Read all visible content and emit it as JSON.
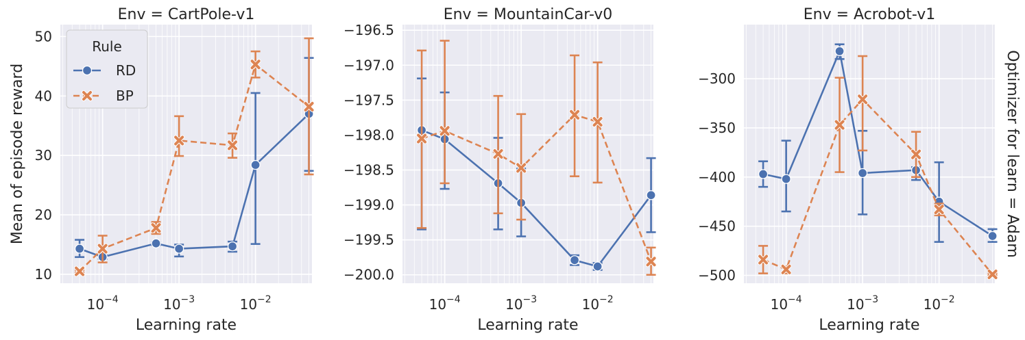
{
  "colors": {
    "RD": "#4c72b0",
    "BP": "#dd8452"
  },
  "legend": {
    "title": "Rule",
    "entries": [
      {
        "name": "RD",
        "marker": "circle",
        "linestyle": "solid"
      },
      {
        "name": "BP",
        "marker": "x",
        "linestyle": "dashed"
      }
    ]
  },
  "row_label": "Optimizer for learn = Adam",
  "chart_data": [
    {
      "type": "line",
      "title": "Env = CartPole-v1",
      "xlabel": "Learning rate",
      "ylabel": "Mean of episode reward",
      "xscale": "log",
      "xticks": [
        {
          "base": "10",
          "exp": "−4"
        },
        {
          "base": "10",
          "exp": "−3"
        },
        {
          "base": "10",
          "exp": "−2"
        }
      ],
      "yticks": [
        "10",
        "20",
        "30",
        "40",
        "50"
      ],
      "ylim": [
        8.5,
        52
      ],
      "series": [
        {
          "name": "RD",
          "x": [
            5e-05,
            0.0001,
            0.0005,
            0.001,
            0.005,
            0.01,
            0.05
          ],
          "y": [
            14.3,
            12.9,
            15.2,
            14.3,
            14.7,
            28.4,
            37.0
          ],
          "err_low": [
            12.9,
            12.6,
            14.9,
            13.0,
            13.8,
            15.1,
            27.4
          ],
          "err_high": [
            15.8,
            13.2,
            15.4,
            15.0,
            15.5,
            40.5,
            46.4
          ]
        },
        {
          "name": "BP",
          "x": [
            5e-05,
            0.0001,
            0.0005,
            0.001,
            0.005,
            0.01,
            0.05
          ],
          "y": [
            10.5,
            14.3,
            17.8,
            32.5,
            31.7,
            45.3,
            38.2
          ],
          "err_low": [
            10.3,
            12.0,
            16.8,
            29.9,
            29.6,
            43.1,
            26.8
          ],
          "err_high": [
            10.7,
            16.5,
            18.8,
            36.6,
            33.7,
            47.5,
            49.7
          ]
        }
      ],
      "grid": true,
      "legend_position": "upper-left"
    },
    {
      "type": "line",
      "title": "Env = MountainCar-v0",
      "xlabel": "Learning rate",
      "ylabel": "",
      "xscale": "log",
      "xticks": [
        {
          "base": "10",
          "exp": "−4"
        },
        {
          "base": "10",
          "exp": "−3"
        },
        {
          "base": "10",
          "exp": "−2"
        }
      ],
      "yticks": [
        "−196.5",
        "−197.0",
        "−197.5",
        "−198.0",
        "−198.5",
        "−199.0",
        "−199.5",
        "−200.0"
      ],
      "ylim": [
        -200.12,
        -196.42
      ],
      "series": [
        {
          "name": "RD",
          "x": [
            5e-05,
            0.0001,
            0.0005,
            0.001,
            0.005,
            0.01,
            0.05
          ],
          "y": [
            -197.93,
            -198.06,
            -198.69,
            -198.97,
            -199.79,
            -199.88,
            -198.86
          ],
          "err_low": [
            -199.35,
            -198.77,
            -199.35,
            -199.45,
            -199.86,
            -199.93,
            -199.39
          ],
          "err_high": [
            -197.19,
            -197.39,
            -198.04,
            -198.48,
            -199.72,
            -199.83,
            -198.33
          ]
        },
        {
          "name": "BP",
          "x": [
            5e-05,
            0.0001,
            0.0005,
            0.001,
            0.005,
            0.01,
            0.05
          ],
          "y": [
            -198.05,
            -197.94,
            -198.27,
            -198.47,
            -197.71,
            -197.81,
            -199.81
          ],
          "err_low": [
            -199.33,
            -198.69,
            -199.12,
            -199.21,
            -198.59,
            -198.68,
            -200.0
          ],
          "err_high": [
            -196.79,
            -196.65,
            -197.44,
            -197.7,
            -196.86,
            -196.96,
            -199.61
          ]
        }
      ],
      "grid": true
    },
    {
      "type": "line",
      "title": "Env = Acrobot-v1",
      "xlabel": "Learning rate",
      "ylabel": "",
      "xscale": "log",
      "xticks": [
        {
          "base": "10",
          "exp": "−4"
        },
        {
          "base": "10",
          "exp": "−3"
        },
        {
          "base": "10",
          "exp": "−2"
        }
      ],
      "yticks": [
        "−300",
        "−350",
        "−400",
        "−450",
        "−500"
      ],
      "ylim": [
        -508,
        -245
      ],
      "series": [
        {
          "name": "RD",
          "x": [
            5e-05,
            0.0001,
            0.0005,
            0.001,
            0.005,
            0.01,
            0.05
          ],
          "y": [
            -397,
            -402,
            -272,
            -396,
            -393,
            -425,
            -460
          ],
          "err_low": [
            -410,
            -435,
            -280,
            -438,
            -403,
            -466,
            -466
          ],
          "err_high": [
            -384,
            -363,
            -265,
            -353,
            -390,
            -385,
            -453
          ]
        },
        {
          "name": "BP",
          "x": [
            5e-05,
            0.0001,
            0.0005,
            0.001,
            0.005,
            0.01,
            0.05
          ],
          "y": [
            -484,
            -494,
            -347,
            -321,
            -377,
            -433,
            -499
          ],
          "err_low": [
            -498,
            -498,
            -395,
            -373,
            -400,
            -439,
            -500
          ],
          "err_high": [
            -470,
            -491,
            -299,
            -277,
            -354,
            -427,
            -498
          ]
        }
      ],
      "grid": true
    }
  ]
}
